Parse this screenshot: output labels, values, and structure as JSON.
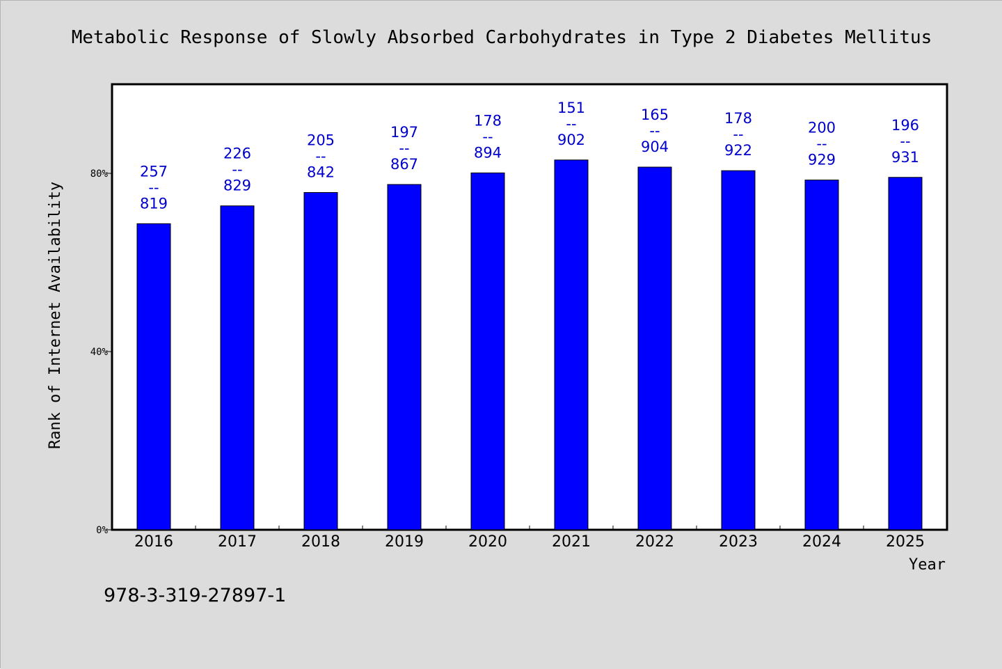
{
  "chart_data": {
    "type": "bar",
    "title": "Metabolic Response of Slowly Absorbed Carbohydrates in Type 2 Diabetes Mellitus",
    "xlabel": "Year",
    "ylabel": "Rank of Internet Availability",
    "categories": [
      "2016",
      "2017",
      "2018",
      "2019",
      "2020",
      "2021",
      "2022",
      "2023",
      "2024",
      "2025"
    ],
    "values": [
      68.7,
      72.7,
      75.7,
      77.5,
      80.1,
      83.0,
      81.4,
      80.6,
      78.5,
      79.1
    ],
    "label_top": [
      "257",
      "226",
      "205",
      "197",
      "178",
      "151",
      "165",
      "178",
      "200",
      "196"
    ],
    "label_sep": "--",
    "label_bottom": [
      "819",
      "829",
      "842",
      "867",
      "894",
      "902",
      "904",
      "922",
      "929",
      "931"
    ],
    "ylim": [
      0,
      100
    ],
    "yticks": [
      0,
      40,
      80
    ],
    "ytick_labels": [
      "0%",
      "40%",
      "80%"
    ],
    "grid": false,
    "colors": {
      "background": "#dcdcdc",
      "plot_background": "#ffffff",
      "bar": "#0000ff",
      "bar_edge": "#000000",
      "data_label": "#0000cc",
      "axis": "#000000"
    }
  },
  "footer": {
    "isbn": "978-3-319-27897-1"
  }
}
